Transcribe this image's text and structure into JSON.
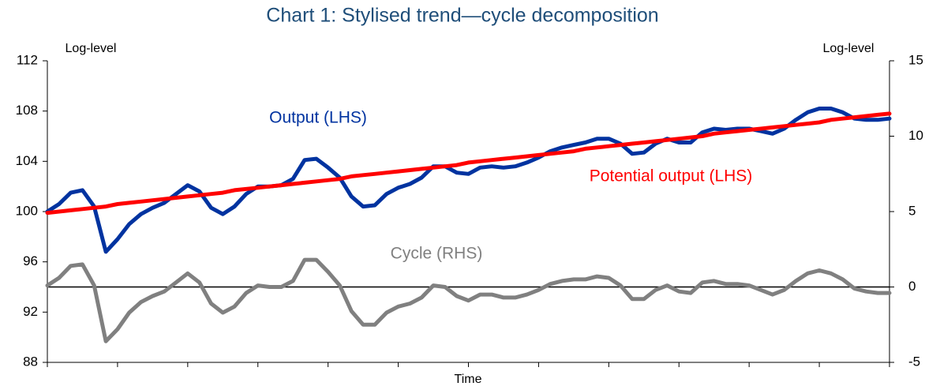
{
  "chart_data": {
    "type": "line",
    "title": "Chart 1: Stylised trend—cycle decomposition",
    "ylabel": "Log-level",
    "y2label": "Log-level",
    "xlabel": "Time",
    "x": [
      0,
      1,
      2,
      3,
      4,
      5,
      6,
      7,
      8,
      9,
      10,
      11,
      12,
      13,
      14,
      15,
      16,
      17,
      18,
      19,
      20,
      21,
      22,
      23,
      24,
      25,
      26,
      27,
      28,
      29,
      30,
      31,
      32,
      33,
      34,
      35,
      36,
      37,
      38,
      39,
      40,
      41,
      42,
      43,
      44,
      45,
      46,
      47,
      48,
      49,
      50,
      51,
      52,
      53,
      54,
      55,
      56,
      57,
      58,
      59,
      60,
      61,
      62,
      63,
      64,
      65,
      66,
      67,
      68,
      69,
      70,
      71,
      72
    ],
    "xlim": [
      0,
      72
    ],
    "xticks": [
      0,
      6,
      12,
      18,
      24,
      30,
      36,
      42,
      48,
      54,
      60,
      66,
      72
    ],
    "ylim": [
      88,
      112
    ],
    "yticks": [
      88,
      92,
      96,
      100,
      104,
      108,
      112
    ],
    "y2lim": [
      -5,
      15
    ],
    "y2ticks": [
      -5,
      0,
      5,
      10,
      15
    ],
    "reference_line": {
      "axis": "y2",
      "value": 0
    },
    "series": [
      {
        "name": "Cycle (RHS)",
        "color": "#808080",
        "axis": "y2",
        "values": [
          0.1,
          0.6,
          1.4,
          1.5,
          0.1,
          -3.6,
          -2.8,
          -1.7,
          -1.0,
          -0.6,
          -0.3,
          0.3,
          0.9,
          0.3,
          -1.1,
          -1.7,
          -1.3,
          -0.4,
          0.1,
          0.0,
          0.0,
          0.4,
          1.8,
          1.8,
          1.0,
          0.1,
          -1.6,
          -2.5,
          -2.5,
          -1.7,
          -1.3,
          -1.1,
          -0.7,
          0.1,
          0.0,
          -0.6,
          -0.9,
          -0.5,
          -0.5,
          -0.7,
          -0.7,
          -0.5,
          -0.2,
          0.2,
          0.4,
          0.5,
          0.5,
          0.7,
          0.6,
          0.1,
          -0.8,
          -0.8,
          -0.2,
          0.1,
          -0.3,
          -0.4,
          0.3,
          0.4,
          0.2,
          0.2,
          0.1,
          -0.2,
          -0.5,
          -0.2,
          0.4,
          0.9,
          1.1,
          0.9,
          0.5,
          -0.1,
          -0.3,
          -0.4,
          -0.4
        ]
      },
      {
        "name": "Output (LHS)",
        "color": "#0033a0",
        "values": [
          100.0,
          100.6,
          101.5,
          101.7,
          100.4,
          96.8,
          97.8,
          99.0,
          99.8,
          100.3,
          100.7,
          101.4,
          102.1,
          101.6,
          100.3,
          99.8,
          100.4,
          101.4,
          102.0,
          102.0,
          102.1,
          102.6,
          104.1,
          104.2,
          103.5,
          102.7,
          101.2,
          100.4,
          100.5,
          101.4,
          101.9,
          102.2,
          102.7,
          103.6,
          103.6,
          103.1,
          103.0,
          103.5,
          103.6,
          103.5,
          103.6,
          103.9,
          104.3,
          104.8,
          105.1,
          105.3,
          105.5,
          105.8,
          105.8,
          105.4,
          104.6,
          104.7,
          105.4,
          105.8,
          105.5,
          105.5,
          106.3,
          106.6,
          106.5,
          106.6,
          106.6,
          106.4,
          106.2,
          106.6,
          107.3,
          107.9,
          108.2,
          108.2,
          107.9,
          107.4,
          107.3,
          107.3,
          107.4
        ]
      },
      {
        "name": "Potential output (LHS)",
        "color": "#ff0000",
        "values": [
          99.9,
          100.0,
          100.1,
          100.2,
          100.3,
          100.4,
          100.6,
          100.7,
          100.8,
          100.9,
          101.0,
          101.1,
          101.2,
          101.3,
          101.4,
          101.5,
          101.7,
          101.8,
          101.9,
          102.0,
          102.1,
          102.2,
          102.3,
          102.4,
          102.5,
          102.6,
          102.8,
          102.9,
          103.0,
          103.1,
          103.2,
          103.3,
          103.4,
          103.5,
          103.6,
          103.7,
          103.9,
          104.0,
          104.1,
          104.2,
          104.3,
          104.4,
          104.5,
          104.6,
          104.7,
          104.8,
          105.0,
          105.1,
          105.2,
          105.3,
          105.4,
          105.5,
          105.6,
          105.7,
          105.8,
          105.9,
          106.0,
          106.2,
          106.3,
          106.4,
          106.5,
          106.6,
          106.7,
          106.8,
          106.9,
          107.0,
          107.1,
          107.3,
          107.4,
          107.5,
          107.6,
          107.7,
          107.8
        ]
      }
    ]
  }
}
